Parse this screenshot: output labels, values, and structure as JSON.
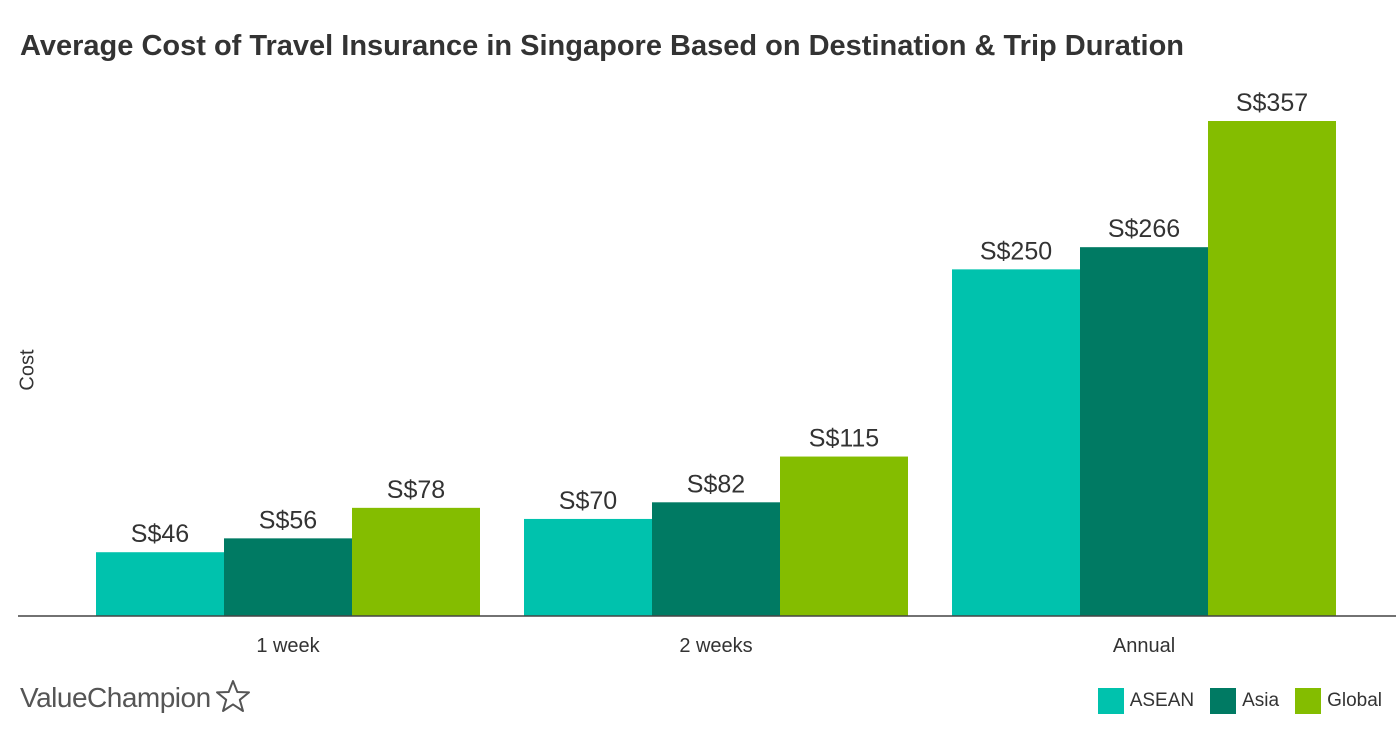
{
  "chart_data": {
    "type": "bar",
    "title": "Average Cost of Travel Insurance in Singapore Based on Destination & Trip Duration",
    "xlabel": "",
    "ylabel": "Cost",
    "categories": [
      "1 week",
      "2 weeks",
      "Annual"
    ],
    "series": [
      {
        "name": "ASEAN",
        "color": "#00c2ad",
        "values": [
          46,
          70,
          250
        ],
        "labels": [
          "S$46",
          "S$70",
          "S$250"
        ]
      },
      {
        "name": "Asia",
        "color": "#007a63",
        "values": [
          56,
          82,
          266
        ],
        "labels": [
          "S$56",
          "S$82",
          "S$266"
        ]
      },
      {
        "name": "Global",
        "color": "#84bd00",
        "values": [
          78,
          115,
          357
        ],
        "labels": [
          "S$78",
          "S$115",
          "S$357"
        ]
      }
    ],
    "ylim": [
      0,
      357
    ],
    "grid": false,
    "legend": "bottom-right"
  },
  "brand": {
    "name": "ValueChampion",
    "icon": "star-outline-icon"
  }
}
